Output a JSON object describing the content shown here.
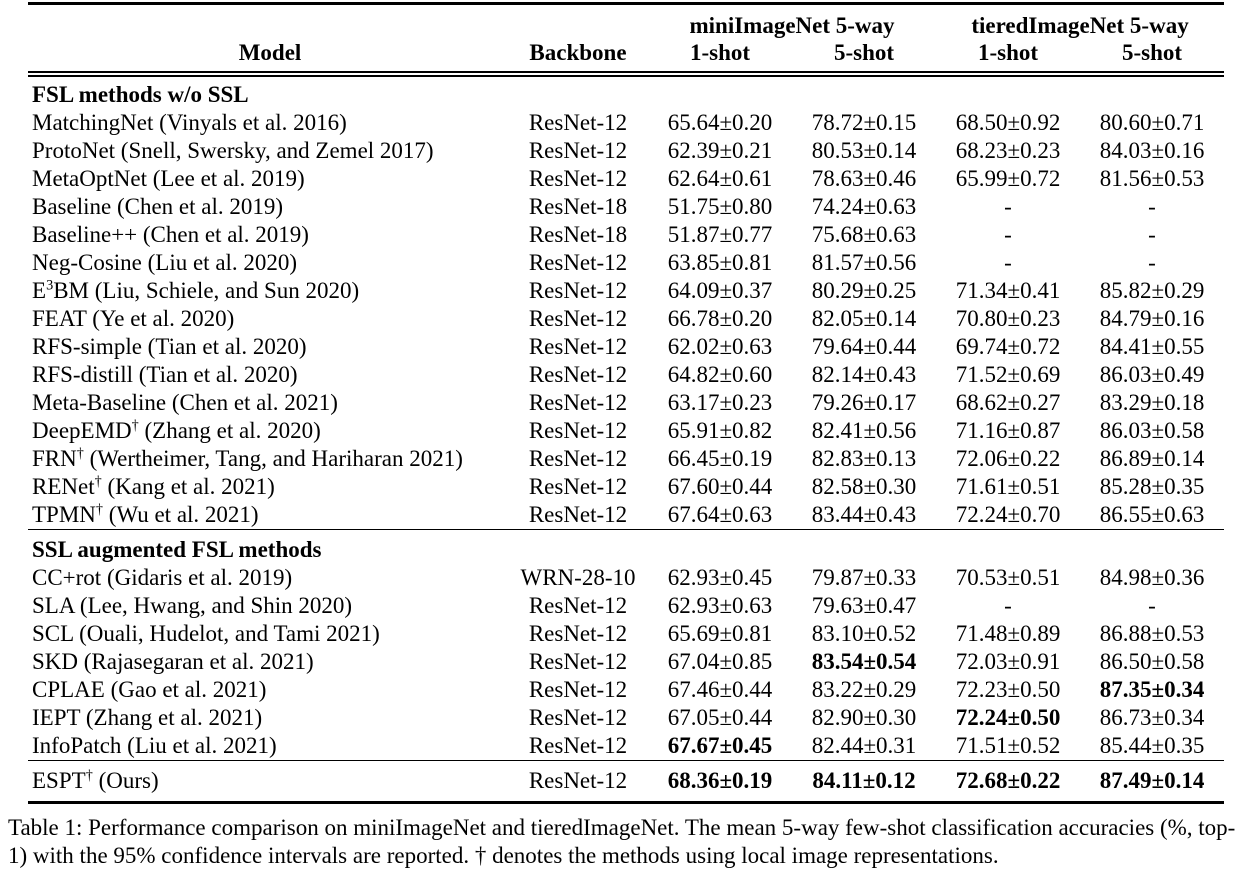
{
  "table": {
    "group_headers": {
      "mini": "miniImageNet 5-way",
      "tiered": "tieredImageNet 5-way"
    },
    "col_headers": {
      "model": "Model",
      "backbone": "Backbone",
      "mini_1shot": "1-shot",
      "mini_5shot": "5-shot",
      "tiered_1shot": "1-shot",
      "tiered_5shot": "5-shot"
    },
    "sections": [
      {
        "title": "FSL methods w/o SSL",
        "rows": [
          {
            "name_pre": "MatchingNet (Vinyals et al. 2016)",
            "name_sup": "",
            "name_post": "",
            "backbone": "ResNet-12",
            "cells": [
              {
                "v": "65.64±0.20",
                "b": false
              },
              {
                "v": "78.72±0.15",
                "b": false
              },
              {
                "v": "68.50±0.92",
                "b": false
              },
              {
                "v": "80.60±0.71",
                "b": false
              }
            ]
          },
          {
            "name_pre": "ProtoNet (Snell, Swersky, and Zemel 2017)",
            "name_sup": "",
            "name_post": "",
            "backbone": "ResNet-12",
            "cells": [
              {
                "v": "62.39±0.21",
                "b": false
              },
              {
                "v": "80.53±0.14",
                "b": false
              },
              {
                "v": "68.23±0.23",
                "b": false
              },
              {
                "v": "84.03±0.16",
                "b": false
              }
            ]
          },
          {
            "name_pre": "MetaOptNet (Lee et al. 2019)",
            "name_sup": "",
            "name_post": "",
            "backbone": "ResNet-12",
            "cells": [
              {
                "v": "62.64±0.61",
                "b": false
              },
              {
                "v": "78.63±0.46",
                "b": false
              },
              {
                "v": "65.99±0.72",
                "b": false
              },
              {
                "v": "81.56±0.53",
                "b": false
              }
            ]
          },
          {
            "name_pre": "Baseline (Chen et al. 2019)",
            "name_sup": "",
            "name_post": "",
            "backbone": "ResNet-18",
            "cells": [
              {
                "v": "51.75±0.80",
                "b": false
              },
              {
                "v": "74.24±0.63",
                "b": false
              },
              {
                "v": "-",
                "b": false
              },
              {
                "v": "-",
                "b": false
              }
            ]
          },
          {
            "name_pre": "Baseline++ (Chen et al. 2019)",
            "name_sup": "",
            "name_post": "",
            "backbone": "ResNet-18",
            "cells": [
              {
                "v": "51.87±0.77",
                "b": false
              },
              {
                "v": "75.68±0.63",
                "b": false
              },
              {
                "v": "-",
                "b": false
              },
              {
                "v": "-",
                "b": false
              }
            ]
          },
          {
            "name_pre": "Neg-Cosine (Liu et al. 2020)",
            "name_sup": "",
            "name_post": "",
            "backbone": "ResNet-12",
            "cells": [
              {
                "v": "63.85±0.81",
                "b": false
              },
              {
                "v": "81.57±0.56",
                "b": false
              },
              {
                "v": "-",
                "b": false
              },
              {
                "v": "-",
                "b": false
              }
            ]
          },
          {
            "name_pre": "E",
            "name_sup": "3",
            "name_post": "BM (Liu, Schiele, and Sun 2020)",
            "backbone": "ResNet-12",
            "cells": [
              {
                "v": "64.09±0.37",
                "b": false
              },
              {
                "v": "80.29±0.25",
                "b": false
              },
              {
                "v": "71.34±0.41",
                "b": false
              },
              {
                "v": "85.82±0.29",
                "b": false
              }
            ]
          },
          {
            "name_pre": "FEAT (Ye et al. 2020)",
            "name_sup": "",
            "name_post": "",
            "backbone": "ResNet-12",
            "cells": [
              {
                "v": "66.78±0.20",
                "b": false
              },
              {
                "v": "82.05±0.14",
                "b": false
              },
              {
                "v": "70.80±0.23",
                "b": false
              },
              {
                "v": "84.79±0.16",
                "b": false
              }
            ]
          },
          {
            "name_pre": "RFS-simple (Tian et al. 2020)",
            "name_sup": "",
            "name_post": "",
            "backbone": "ResNet-12",
            "cells": [
              {
                "v": "62.02±0.63",
                "b": false
              },
              {
                "v": "79.64±0.44",
                "b": false
              },
              {
                "v": "69.74±0.72",
                "b": false
              },
              {
                "v": "84.41±0.55",
                "b": false
              }
            ]
          },
          {
            "name_pre": "RFS-distill (Tian et al. 2020)",
            "name_sup": "",
            "name_post": "",
            "backbone": "ResNet-12",
            "cells": [
              {
                "v": "64.82±0.60",
                "b": false
              },
              {
                "v": "82.14±0.43",
                "b": false
              },
              {
                "v": "71.52±0.69",
                "b": false
              },
              {
                "v": "86.03±0.49",
                "b": false
              }
            ]
          },
          {
            "name_pre": "Meta-Baseline (Chen et al. 2021)",
            "name_sup": "",
            "name_post": "",
            "backbone": "ResNet-12",
            "cells": [
              {
                "v": "63.17±0.23",
                "b": false
              },
              {
                "v": "79.26±0.17",
                "b": false
              },
              {
                "v": "68.62±0.27",
                "b": false
              },
              {
                "v": "83.29±0.18",
                "b": false
              }
            ]
          },
          {
            "name_pre": "DeepEMD",
            "name_sup": "†",
            "name_post": " (Zhang et al. 2020)",
            "backbone": "ResNet-12",
            "cells": [
              {
                "v": "65.91±0.82",
                "b": false
              },
              {
                "v": "82.41±0.56",
                "b": false
              },
              {
                "v": "71.16±0.87",
                "b": false
              },
              {
                "v": "86.03±0.58",
                "b": false
              }
            ]
          },
          {
            "name_pre": "FRN",
            "name_sup": "†",
            "name_post": " (Wertheimer, Tang, and Hariharan 2021)",
            "backbone": "ResNet-12",
            "cells": [
              {
                "v": "66.45±0.19",
                "b": false
              },
              {
                "v": "82.83±0.13",
                "b": false
              },
              {
                "v": "72.06±0.22",
                "b": false
              },
              {
                "v": "86.89±0.14",
                "b": false
              }
            ]
          },
          {
            "name_pre": "RENet",
            "name_sup": "†",
            "name_post": " (Kang et al. 2021)",
            "backbone": "ResNet-12",
            "cells": [
              {
                "v": "67.60±0.44",
                "b": false
              },
              {
                "v": "82.58±0.30",
                "b": false
              },
              {
                "v": "71.61±0.51",
                "b": false
              },
              {
                "v": "85.28±0.35",
                "b": false
              }
            ]
          },
          {
            "name_pre": "TPMN",
            "name_sup": "†",
            "name_post": " (Wu et al. 2021)",
            "backbone": "ResNet-12",
            "cells": [
              {
                "v": "67.64±0.63",
                "b": false
              },
              {
                "v": "83.44±0.43",
                "b": false
              },
              {
                "v": "72.24±0.70",
                "b": false
              },
              {
                "v": "86.55±0.63",
                "b": false
              }
            ]
          }
        ]
      },
      {
        "title": "SSL augmented FSL methods",
        "rows": [
          {
            "name_pre": "CC+rot (Gidaris et al. 2019)",
            "name_sup": "",
            "name_post": "",
            "backbone": "WRN-28-10",
            "cells": [
              {
                "v": "62.93±0.45",
                "b": false
              },
              {
                "v": "79.87±0.33",
                "b": false
              },
              {
                "v": "70.53±0.51",
                "b": false
              },
              {
                "v": "84.98±0.36",
                "b": false
              }
            ]
          },
          {
            "name_pre": "SLA (Lee, Hwang, and Shin 2020)",
            "name_sup": "",
            "name_post": "",
            "backbone": "ResNet-12",
            "cells": [
              {
                "v": "62.93±0.63",
                "b": false
              },
              {
                "v": "79.63±0.47",
                "b": false
              },
              {
                "v": "-",
                "b": false
              },
              {
                "v": "-",
                "b": false
              }
            ]
          },
          {
            "name_pre": "SCL (Ouali, Hudelot, and Tami 2021)",
            "name_sup": "",
            "name_post": "",
            "backbone": "ResNet-12",
            "cells": [
              {
                "v": "65.69±0.81",
                "b": false
              },
              {
                "v": "83.10±0.52",
                "b": false
              },
              {
                "v": "71.48±0.89",
                "b": false
              },
              {
                "v": "86.88±0.53",
                "b": false
              }
            ]
          },
          {
            "name_pre": "SKD (Rajasegaran et al. 2021)",
            "name_sup": "",
            "name_post": "",
            "backbone": "ResNet-12",
            "cells": [
              {
                "v": "67.04±0.85",
                "b": false
              },
              {
                "v": "83.54±0.54",
                "b": true
              },
              {
                "v": "72.03±0.91",
                "b": false
              },
              {
                "v": "86.50±0.58",
                "b": false
              }
            ]
          },
          {
            "name_pre": "CPLAE (Gao et al. 2021)",
            "name_sup": "",
            "name_post": "",
            "backbone": "ResNet-12",
            "cells": [
              {
                "v": "67.46±0.44",
                "b": false
              },
              {
                "v": "83.22±0.29",
                "b": false
              },
              {
                "v": "72.23±0.50",
                "b": false
              },
              {
                "v": "87.35±0.34",
                "b": true
              }
            ]
          },
          {
            "name_pre": "IEPT (Zhang et al. 2021)",
            "name_sup": "",
            "name_post": "",
            "backbone": "ResNet-12",
            "cells": [
              {
                "v": "67.05±0.44",
                "b": false
              },
              {
                "v": "82.90±0.30",
                "b": false
              },
              {
                "v": "72.24±0.50",
                "b": true
              },
              {
                "v": "86.73±0.34",
                "b": false
              }
            ]
          },
          {
            "name_pre": "InfoPatch (Liu et al. 2021)",
            "name_sup": "",
            "name_post": "",
            "backbone": "ResNet-12",
            "cells": [
              {
                "v": "67.67±0.45",
                "b": true
              },
              {
                "v": "82.44±0.31",
                "b": false
              },
              {
                "v": "71.51±0.52",
                "b": false
              },
              {
                "v": "85.44±0.35",
                "b": false
              }
            ]
          }
        ]
      }
    ],
    "final_row": {
      "name_pre": "ESPT",
      "name_sup": "†",
      "name_post": " (Ours)",
      "backbone": "ResNet-12",
      "cells": [
        {
          "v": "68.36±0.19",
          "b": true
        },
        {
          "v": "84.11±0.12",
          "b": true
        },
        {
          "v": "72.68±0.22",
          "b": true
        },
        {
          "v": "87.49±0.14",
          "b": true
        }
      ]
    }
  },
  "caption": "Table 1: Performance comparison on miniImageNet and tieredImageNet. The mean 5-way few-shot classification accuracies (%, top-1) with the 95% confidence intervals are reported. † denotes the methods using local image representations.",
  "colors": {
    "text": "#000000",
    "background": "#ffffff",
    "rule": "#000000"
  }
}
